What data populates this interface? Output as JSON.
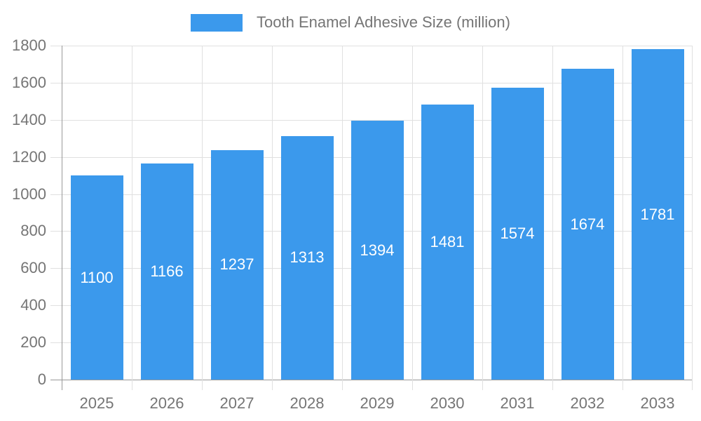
{
  "legend": {
    "series_label": "Tooth Enamel Adhesive Size (million)"
  },
  "chart_data": {
    "type": "bar",
    "title": "Tooth Enamel Adhesive Size (million)",
    "categories": [
      "2025",
      "2026",
      "2027",
      "2028",
      "2029",
      "2030",
      "2031",
      "2032",
      "2033"
    ],
    "values": [
      1100,
      1166,
      1237,
      1313,
      1394,
      1481,
      1574,
      1674,
      1781
    ],
    "xlabel": "",
    "ylabel": "",
    "ylim": [
      0,
      1800
    ],
    "ytick_step": 200,
    "grid": true,
    "legend_position": "top-center",
    "data_labels": "inside-center",
    "colors": {
      "bar": "#3b99ec",
      "grid": "#e0e0e0",
      "axis": "#999999",
      "text": "#757575",
      "bar_label": "#ffffff",
      "background": "#ffffff"
    }
  }
}
